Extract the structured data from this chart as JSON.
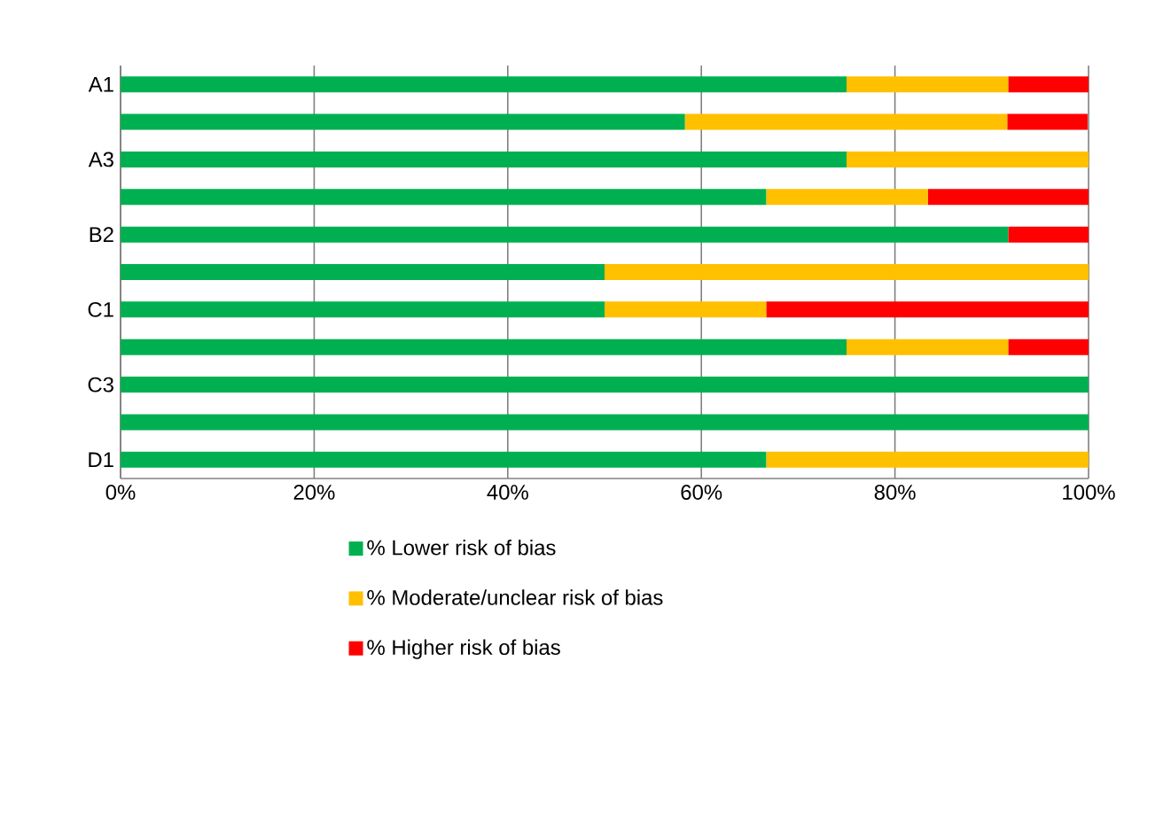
{
  "chart_data": {
    "type": "bar",
    "orientation": "horizontal",
    "stacked": true,
    "categories": [
      "A1",
      null,
      "A3",
      null,
      "B2",
      null,
      "C1",
      null,
      "C3",
      null,
      "D1"
    ],
    "series": [
      {
        "name": "% Lower risk of bias",
        "color": "#00b050",
        "values": [
          75,
          58.3,
          75,
          66.7,
          91.7,
          50,
          50,
          75,
          100,
          100,
          66.7
        ]
      },
      {
        "name": "% Moderate/unclear risk of bias",
        "color": "#ffc000",
        "values": [
          16.7,
          33.3,
          25,
          16.7,
          0,
          50,
          16.7,
          16.7,
          0,
          0,
          33.3
        ]
      },
      {
        "name": "% Higher risk of bias",
        "color": "#ff0000",
        "values": [
          8.3,
          8.3,
          0,
          16.7,
          8.3,
          0,
          33.3,
          8.3,
          0,
          0,
          0
        ]
      }
    ],
    "xlim": [
      0,
      100
    ],
    "xticks": [
      {
        "value": 0,
        "label": "0%"
      },
      {
        "value": 20,
        "label": "20%"
      },
      {
        "value": 40,
        "label": "40%"
      },
      {
        "value": 60,
        "label": "60%"
      },
      {
        "value": 80,
        "label": "80%"
      },
      {
        "value": 100,
        "label": "100%"
      }
    ],
    "grid": "x",
    "legend": "bottom"
  }
}
